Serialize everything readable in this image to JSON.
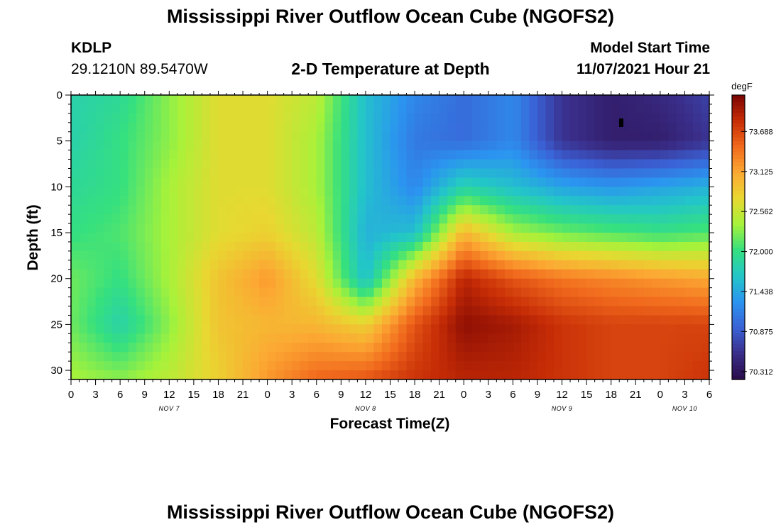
{
  "header": {
    "title": "Mississippi River Outflow Ocean Cube (NGOFS2)",
    "station_id": "KDLP",
    "station_coords": "29.1210N  89.5470W",
    "subtitle": "2-D Temperature at Depth",
    "model_start_label": "Model Start Time",
    "model_start_value": "11/07/2021 Hour 21"
  },
  "footer": {
    "title": "Mississippi River Outflow Ocean Cube (NGOFS2)"
  },
  "chart_data": {
    "type": "heatmap",
    "xlabel": "Forecast Time(Z)",
    "ylabel": "Depth (ft)",
    "x_tick_labels": [
      "0",
      "3",
      "6",
      "9",
      "12",
      "15",
      "18",
      "21",
      "0",
      "3",
      "6",
      "9",
      "12",
      "15",
      "18",
      "21",
      "0",
      "3",
      "6",
      "9",
      "12",
      "15",
      "18",
      "21",
      "0",
      "3",
      "6"
    ],
    "x_range_hours": [
      0,
      78
    ],
    "day_labels": [
      {
        "label": "NOV 7",
        "hour": 12
      },
      {
        "label": "NOV 8",
        "hour": 36
      },
      {
        "label": "NOV 9",
        "hour": 60
      },
      {
        "label": "NOV 10",
        "hour": 75
      }
    ],
    "y_ticks": [
      0,
      5,
      10,
      15,
      20,
      25,
      30
    ],
    "ylim": [
      0,
      31
    ],
    "y_inverted": true,
    "colorbar": {
      "unit": "degF",
      "tick_labels": [
        "73.688",
        "73.125",
        "72.562",
        "72.000",
        "71.438",
        "70.875",
        "70.312"
      ],
      "range": [
        70.2,
        74.2
      ],
      "colors": [
        "#2a0c4a",
        "#3a2e8a",
        "#3a62d6",
        "#2b94f0",
        "#23c6c8",
        "#35e07f",
        "#a6f23a",
        "#e8d831",
        "#fca833",
        "#f16a1d",
        "#c72d06",
        "#7a0403"
      ]
    },
    "grid_hours": [
      0,
      6,
      12,
      18,
      24,
      30,
      36,
      42,
      48,
      54,
      60,
      66,
      72,
      78
    ],
    "grid_depths_ft": [
      0,
      5,
      10,
      15,
      20,
      25,
      31
    ],
    "temperature_degF": [
      [
        71.8,
        71.9,
        72.3,
        72.7,
        72.7,
        72.5,
        71.6,
        71.2,
        71.0,
        71.2,
        70.6,
        70.4,
        70.5,
        70.7
      ],
      [
        71.8,
        72.0,
        72.3,
        72.7,
        72.7,
        72.4,
        71.6,
        71.1,
        71.0,
        71.2,
        70.6,
        70.4,
        70.4,
        70.6
      ],
      [
        71.9,
        72.0,
        72.4,
        72.7,
        72.7,
        72.4,
        71.6,
        71.2,
        71.8,
        71.6,
        71.4,
        71.3,
        71.4,
        71.5
      ],
      [
        72.0,
        72.1,
        72.4,
        72.7,
        72.8,
        72.5,
        71.5,
        71.6,
        73.0,
        72.4,
        72.2,
        72.1,
        72.0,
        72.1
      ],
      [
        72.2,
        72.0,
        72.4,
        72.9,
        73.2,
        72.7,
        71.6,
        73.0,
        73.9,
        73.6,
        73.4,
        73.3,
        73.2,
        73.1
      ],
      [
        72.2,
        71.8,
        72.3,
        72.9,
        73.0,
        73.0,
        72.8,
        73.6,
        74.1,
        74.0,
        73.8,
        73.7,
        73.7,
        73.7
      ],
      [
        72.4,
        72.3,
        72.5,
        72.8,
        73.2,
        73.5,
        73.6,
        73.8,
        73.9,
        73.9,
        73.8,
        73.7,
        73.7,
        73.8
      ]
    ]
  }
}
